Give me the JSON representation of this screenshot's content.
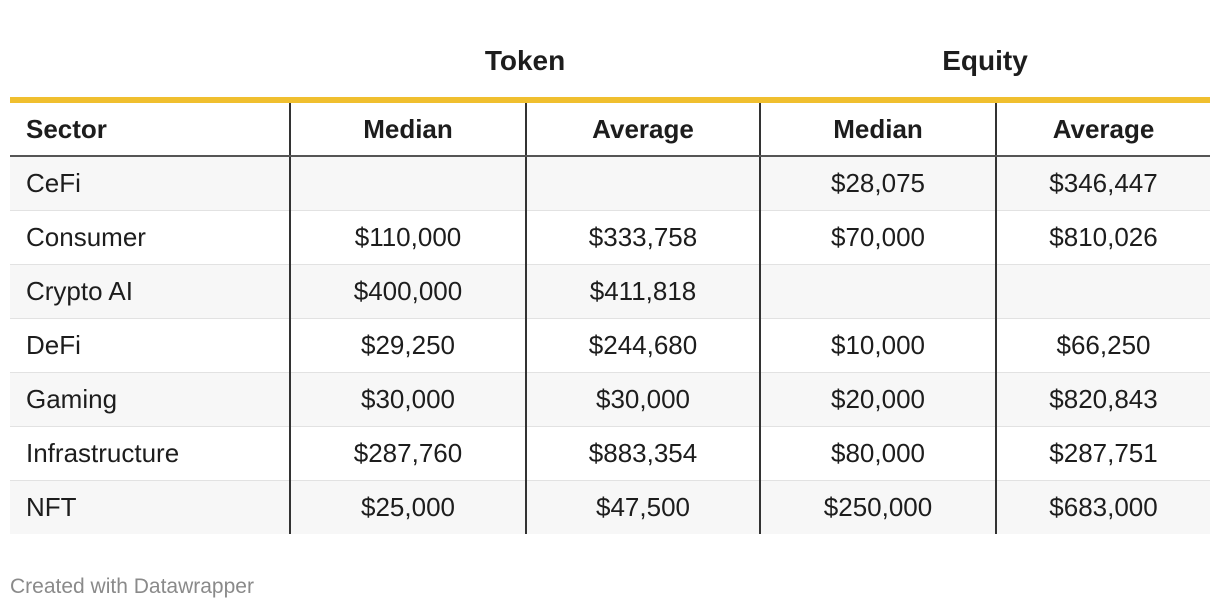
{
  "chart_data": {
    "type": "table",
    "column_groups": [
      {
        "label": "Token",
        "span": 2
      },
      {
        "label": "Equity",
        "span": 2
      }
    ],
    "columns": [
      "Sector",
      "Median",
      "Average",
      "Median",
      "Average"
    ],
    "rows": [
      [
        "CeFi",
        "",
        "",
        "$28,075",
        "$346,447"
      ],
      [
        "Consumer",
        "$110,000",
        "$333,758",
        "$70,000",
        "$810,026"
      ],
      [
        "Crypto AI",
        "$400,000",
        "$411,818",
        "",
        ""
      ],
      [
        "DeFi",
        "$29,250",
        "$244,680",
        "$10,000",
        "$66,250"
      ],
      [
        "Gaming",
        "$30,000",
        "$30,000",
        "$20,000",
        "$820,843"
      ],
      [
        "Infrastructure",
        "$287,760",
        "$883,354",
        "$80,000",
        "$287,751"
      ],
      [
        "NFT",
        "$25,000",
        "$47,500",
        "$250,000",
        "$683,000"
      ]
    ],
    "accent_color": "#f0bf2f"
  },
  "footer": {
    "credit": "Created with Datawrapper"
  }
}
